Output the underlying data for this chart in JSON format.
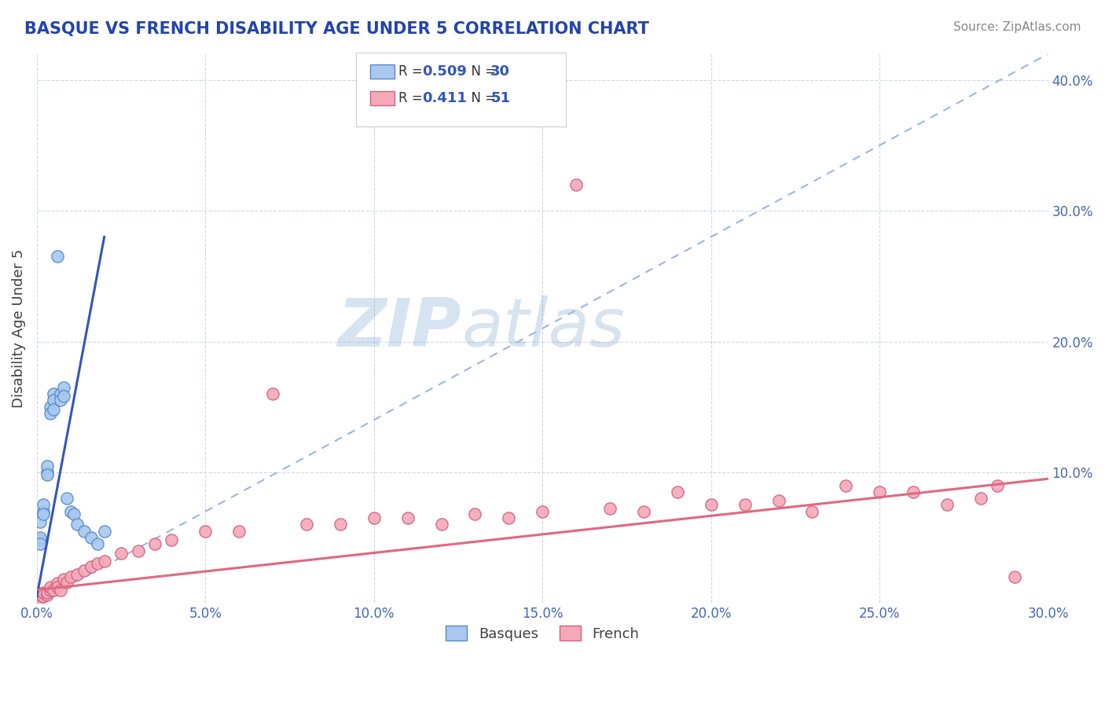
{
  "title": "BASQUE VS FRENCH DISABILITY AGE UNDER 5 CORRELATION CHART",
  "source": "Source: ZipAtlas.com",
  "ylabel": "Disability Age Under 5",
  "xlim": [
    0.0,
    0.3
  ],
  "ylim": [
    0.0,
    0.42
  ],
  "xtick_vals": [
    0.0,
    0.05,
    0.1,
    0.15,
    0.2,
    0.25,
    0.3
  ],
  "xtick_labels": [
    "0.0%",
    "5.0%",
    "10.0%",
    "15.0%",
    "20.0%",
    "25.0%",
    "30.0%"
  ],
  "ytick_vals": [
    0.1,
    0.2,
    0.3,
    0.4
  ],
  "ytick_labels": [
    "10.0%",
    "20.0%",
    "30.0%",
    "40.0%"
  ],
  "basque_color": "#a8c8f0",
  "french_color": "#f5a8b8",
  "basque_edge": "#5588cc",
  "french_edge": "#d06080",
  "trendline_basque_color": "#3355bb",
  "trendline_french_color": "#e06880",
  "diagonal_color": "#99b8dd",
  "tick_color": "#4466bb",
  "R_basque": 0.509,
  "N_basque": 30,
  "R_french": 0.411,
  "N_french": 51,
  "watermark_zip": "ZIP",
  "watermark_atlas": "atlas",
  "basque_x": [
    0.0,
    0.0,
    0.001,
    0.001,
    0.001,
    0.001,
    0.002,
    0.002,
    0.002,
    0.003,
    0.003,
    0.003,
    0.004,
    0.004,
    0.005,
    0.005,
    0.005,
    0.006,
    0.007,
    0.007,
    0.008,
    0.008,
    0.009,
    0.01,
    0.011,
    0.012,
    0.014,
    0.016,
    0.018,
    0.02
  ],
  "basque_y": [
    0.002,
    0.005,
    0.048,
    0.062,
    0.05,
    0.045,
    0.07,
    0.075,
    0.068,
    0.1,
    0.105,
    0.098,
    0.15,
    0.145,
    0.16,
    0.155,
    0.148,
    0.265,
    0.16,
    0.155,
    0.165,
    0.158,
    0.08,
    0.07,
    0.068,
    0.06,
    0.055,
    0.05,
    0.045,
    0.055
  ],
  "french_x": [
    0.0,
    0.001,
    0.001,
    0.002,
    0.002,
    0.003,
    0.003,
    0.004,
    0.004,
    0.005,
    0.006,
    0.006,
    0.007,
    0.008,
    0.009,
    0.01,
    0.012,
    0.014,
    0.016,
    0.018,
    0.02,
    0.025,
    0.03,
    0.035,
    0.04,
    0.05,
    0.06,
    0.07,
    0.08,
    0.09,
    0.1,
    0.11,
    0.12,
    0.13,
    0.14,
    0.15,
    0.16,
    0.17,
    0.18,
    0.19,
    0.2,
    0.21,
    0.22,
    0.23,
    0.24,
    0.25,
    0.26,
    0.27,
    0.28,
    0.285,
    0.29
  ],
  "french_y": [
    0.002,
    0.004,
    0.006,
    0.005,
    0.008,
    0.006,
    0.008,
    0.01,
    0.012,
    0.01,
    0.015,
    0.012,
    0.01,
    0.018,
    0.016,
    0.02,
    0.022,
    0.025,
    0.028,
    0.03,
    0.032,
    0.038,
    0.04,
    0.045,
    0.048,
    0.055,
    0.055,
    0.16,
    0.06,
    0.06,
    0.065,
    0.065,
    0.06,
    0.068,
    0.065,
    0.07,
    0.32,
    0.072,
    0.07,
    0.085,
    0.075,
    0.075,
    0.078,
    0.07,
    0.09,
    0.085,
    0.085,
    0.075,
    0.08,
    0.09,
    0.02
  ]
}
